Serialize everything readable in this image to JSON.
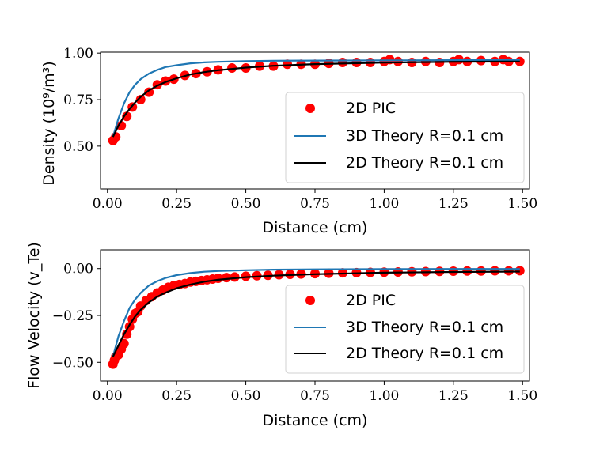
{
  "chart_data": [
    {
      "type": "line",
      "xlabel": "Distance (cm)",
      "ylabel": "Density (10⁹/m³)",
      "xlim": [
        -0.025,
        1.525
      ],
      "ylim": [
        0.27,
        1.005
      ],
      "xticks": [
        0.0,
        0.25,
        0.5,
        0.75,
        1.0,
        1.25,
        1.5
      ],
      "xtick_labels": [
        "0.00",
        "0.25",
        "0.50",
        "0.75",
        "1.00",
        "1.25",
        "1.50"
      ],
      "yticks": [
        0.5,
        0.75,
        1.0
      ],
      "ytick_labels": [
        "0.50",
        "0.75",
        "1.00"
      ],
      "legend_position": "lower-right",
      "series": [
        {
          "name": "2D PIC",
          "style": "markers",
          "color": "#ff0000",
          "x": [
            0.02,
            0.03,
            0.05,
            0.07,
            0.09,
            0.12,
            0.15,
            0.18,
            0.21,
            0.24,
            0.28,
            0.32,
            0.36,
            0.4,
            0.45,
            0.5,
            0.55,
            0.6,
            0.65,
            0.7,
            0.75,
            0.8,
            0.85,
            0.9,
            0.95,
            1.0,
            1.02,
            1.05,
            1.1,
            1.15,
            1.2,
            1.25,
            1.27,
            1.3,
            1.35,
            1.4,
            1.43,
            1.45,
            1.49
          ],
          "y": [
            0.53,
            0.55,
            0.61,
            0.66,
            0.71,
            0.75,
            0.79,
            0.83,
            0.85,
            0.86,
            0.88,
            0.89,
            0.9,
            0.91,
            0.92,
            0.92,
            0.93,
            0.93,
            0.94,
            0.94,
            0.94,
            0.945,
            0.95,
            0.95,
            0.95,
            0.955,
            0.965,
            0.955,
            0.95,
            0.955,
            0.95,
            0.955,
            0.965,
            0.955,
            0.96,
            0.955,
            0.965,
            0.955,
            0.955
          ]
        },
        {
          "name": "3D Theory R=0.1 cm",
          "style": "line",
          "color": "#1f77b4",
          "x": [
            0.02,
            0.04,
            0.06,
            0.08,
            0.1,
            0.12,
            0.15,
            0.18,
            0.21,
            0.25,
            0.3,
            0.35,
            0.4,
            0.5,
            0.6,
            0.75,
            1.0,
            1.25,
            1.49
          ],
          "y": [
            0.55,
            0.65,
            0.73,
            0.79,
            0.83,
            0.86,
            0.89,
            0.91,
            0.925,
            0.935,
            0.945,
            0.95,
            0.953,
            0.957,
            0.959,
            0.96,
            0.961,
            0.962,
            0.962
          ]
        },
        {
          "name": "2D Theory R=0.1 cm",
          "style": "line",
          "color": "#000000",
          "x": [
            0.02,
            0.04,
            0.06,
            0.08,
            0.1,
            0.12,
            0.15,
            0.18,
            0.21,
            0.25,
            0.3,
            0.35,
            0.4,
            0.5,
            0.6,
            0.75,
            1.0,
            1.25,
            1.49
          ],
          "y": [
            0.55,
            0.61,
            0.66,
            0.7,
            0.735,
            0.765,
            0.8,
            0.825,
            0.845,
            0.865,
            0.885,
            0.898,
            0.908,
            0.922,
            0.932,
            0.941,
            0.949,
            0.953,
            0.955
          ]
        }
      ]
    },
    {
      "type": "line",
      "xlabel": "Distance (cm)",
      "ylabel": "Flow Velocity (v_Te)",
      "xlim": [
        -0.025,
        1.525
      ],
      "ylim": [
        -0.6,
        0.1
      ],
      "xticks": [
        0.0,
        0.25,
        0.5,
        0.75,
        1.0,
        1.25,
        1.5
      ],
      "xtick_labels": [
        "0.00",
        "0.25",
        "0.50",
        "0.75",
        "1.00",
        "1.25",
        "1.50"
      ],
      "yticks": [
        -0.5,
        -0.25,
        0.0
      ],
      "ytick_labels": [
        "−0.50",
        "−0.25",
        "0.00"
      ],
      "legend_position": "lower-right",
      "series": [
        {
          "name": "2D PIC",
          "style": "markers",
          "color": "#ff0000",
          "x": [
            0.02,
            0.025,
            0.03,
            0.04,
            0.05,
            0.06,
            0.07,
            0.08,
            0.09,
            0.1,
            0.11,
            0.12,
            0.14,
            0.16,
            0.18,
            0.2,
            0.22,
            0.24,
            0.26,
            0.28,
            0.3,
            0.32,
            0.34,
            0.36,
            0.38,
            0.4,
            0.43,
            0.46,
            0.5,
            0.54,
            0.58,
            0.62,
            0.66,
            0.7,
            0.75,
            0.8,
            0.85,
            0.9,
            0.95,
            1.0,
            1.05,
            1.1,
            1.15,
            1.2,
            1.25,
            1.3,
            1.35,
            1.4,
            1.45,
            1.49
          ],
          "y": [
            -0.51,
            -0.49,
            -0.47,
            -0.46,
            -0.43,
            -0.4,
            -0.35,
            -0.31,
            -0.27,
            -0.24,
            -0.23,
            -0.2,
            -0.17,
            -0.15,
            -0.13,
            -0.115,
            -0.1,
            -0.09,
            -0.085,
            -0.08,
            -0.072,
            -0.068,
            -0.064,
            -0.06,
            -0.056,
            -0.052,
            -0.048,
            -0.045,
            -0.041,
            -0.038,
            -0.036,
            -0.033,
            -0.031,
            -0.029,
            -0.027,
            -0.025,
            -0.023,
            -0.022,
            -0.02,
            -0.019,
            -0.018,
            -0.017,
            -0.016,
            -0.015,
            -0.014,
            -0.013,
            -0.013,
            -0.012,
            -0.012,
            -0.011
          ]
        },
        {
          "name": "3D Theory R=0.1 cm",
          "style": "line",
          "color": "#1f77b4",
          "x": [
            0.02,
            0.04,
            0.06,
            0.08,
            0.1,
            0.12,
            0.15,
            0.18,
            0.21,
            0.25,
            0.3,
            0.35,
            0.4,
            0.5,
            0.6,
            0.75,
            1.0,
            1.25,
            1.49
          ],
          "y": [
            -0.47,
            -0.36,
            -0.28,
            -0.21,
            -0.165,
            -0.13,
            -0.09,
            -0.067,
            -0.05,
            -0.035,
            -0.024,
            -0.017,
            -0.013,
            -0.009,
            -0.006,
            -0.004,
            -0.003,
            -0.002,
            -0.002
          ]
        },
        {
          "name": "2D Theory R=0.1 cm",
          "style": "line",
          "color": "#000000",
          "x": [
            0.02,
            0.04,
            0.06,
            0.08,
            0.1,
            0.12,
            0.15,
            0.18,
            0.21,
            0.25,
            0.3,
            0.35,
            0.4,
            0.5,
            0.6,
            0.75,
            1.0,
            1.25,
            1.49
          ],
          "y": [
            -0.47,
            -0.41,
            -0.35,
            -0.3,
            -0.255,
            -0.22,
            -0.18,
            -0.15,
            -0.128,
            -0.105,
            -0.085,
            -0.07,
            -0.06,
            -0.046,
            -0.038,
            -0.03,
            -0.022,
            -0.018,
            -0.016
          ]
        }
      ]
    }
  ]
}
